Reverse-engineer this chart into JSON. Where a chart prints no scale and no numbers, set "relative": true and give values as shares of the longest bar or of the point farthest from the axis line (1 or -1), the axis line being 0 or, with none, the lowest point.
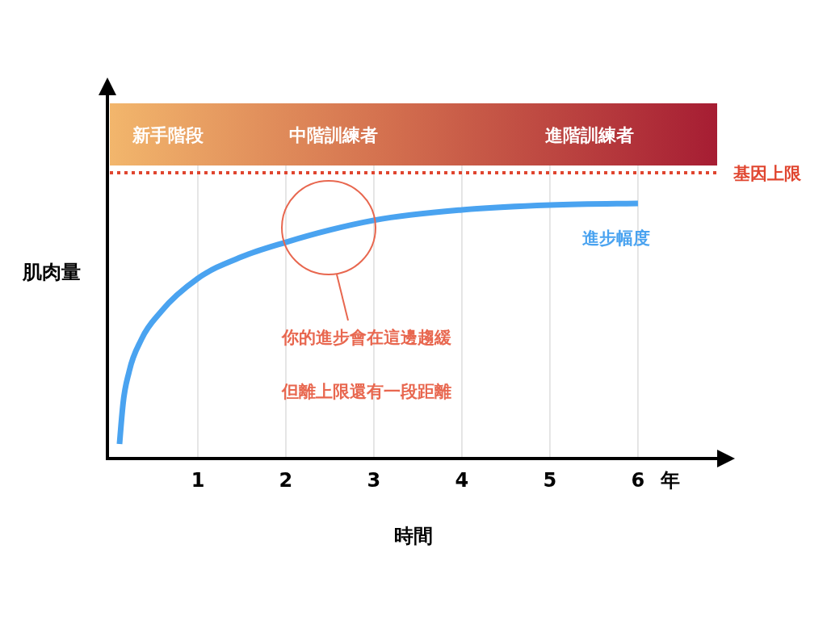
{
  "chart_data": {
    "type": "line",
    "relative": true,
    "xlabel": "時間",
    "ylabel": "肌肉量",
    "xlim": [
      0,
      6.9
    ],
    "xticks": [
      1,
      2,
      3,
      4,
      5,
      6
    ],
    "grid": "x",
    "legend": false,
    "marker": "none",
    "line_style": "solid",
    "series": [
      {
        "name": "進步幅度",
        "color": "#4aa3f0",
        "x": [
          0.11,
          0.15,
          0.22,
          0.36,
          0.59,
          1,
          1.5,
          2,
          2.5,
          3,
          4,
          5,
          6
        ],
        "values": [
          0.057,
          0.215,
          0.342,
          0.468,
          0.579,
          0.706,
          0.791,
          0.848,
          0.896,
          0.934,
          0.975,
          0.994,
          1
        ]
      }
    ],
    "ref_lines": [
      {
        "axis": "y",
        "value": 1.12,
        "label": "基因上限",
        "color": "#e0452f",
        "line_style": "dotted"
      }
    ],
    "annotations": [
      "新手階段",
      "中階訓練者",
      "進階訓練者",
      "你的進步會在這邊趨緩",
      "但離上限還有一段距離",
      "年"
    ]
  }
}
